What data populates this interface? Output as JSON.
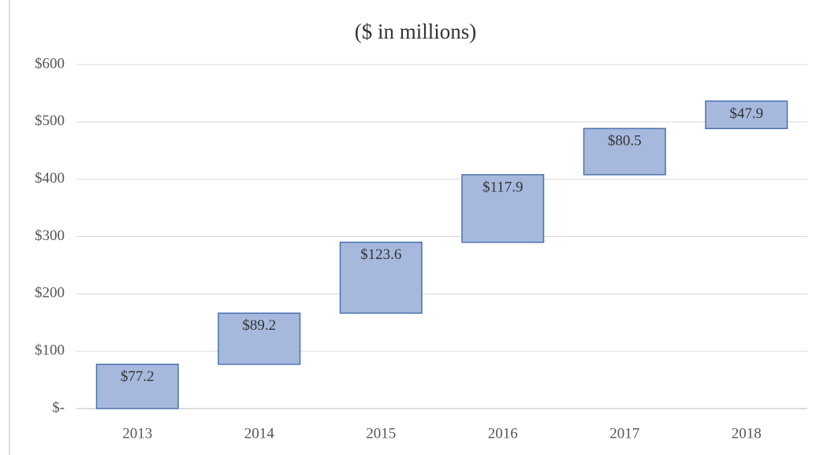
{
  "chart_data": {
    "type": "waterfall",
    "title": "($ in millions)",
    "categories": [
      "2013",
      "2014",
      "2015",
      "2016",
      "2017",
      "2018"
    ],
    "values": [
      77.2,
      89.2,
      123.6,
      117.9,
      80.5,
      47.9
    ],
    "value_labels": [
      "$77.2",
      "$89.2",
      "$123.6",
      "$117.9",
      "$80.5",
      "$47.9"
    ],
    "color": "#a6b9dd",
    "edge_color": "#4a72b0",
    "ylim": [
      0,
      600
    ],
    "yticks": [
      {
        "value": 0,
        "label": "$-"
      },
      {
        "value": 100,
        "label": "$100"
      },
      {
        "value": 200,
        "label": "$200"
      },
      {
        "value": 300,
        "label": "$300"
      },
      {
        "value": 400,
        "label": "$400"
      },
      {
        "value": 500,
        "label": "$500"
      },
      {
        "value": 600,
        "label": "$600"
      }
    ],
    "grid": true
  }
}
